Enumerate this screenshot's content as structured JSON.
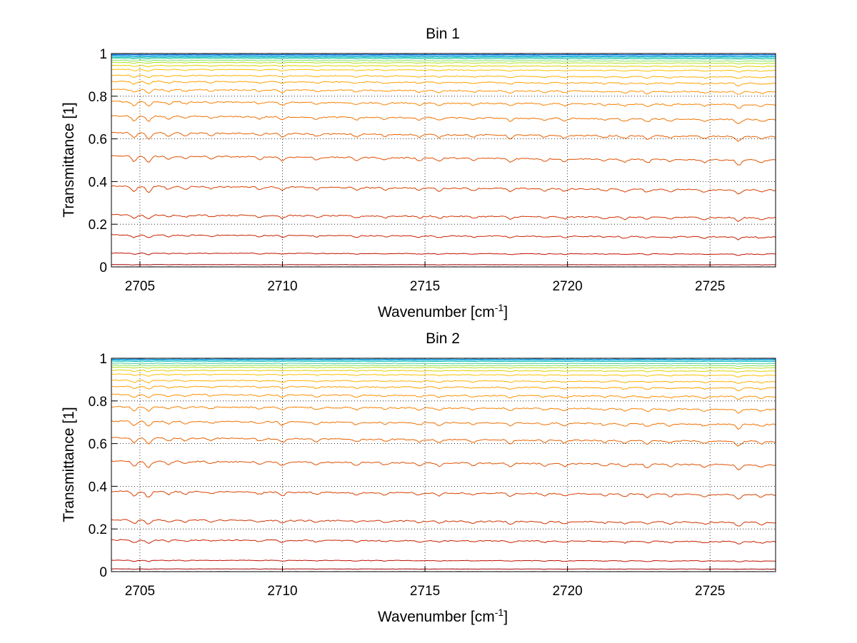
{
  "chart_data": [
    {
      "type": "line",
      "title": "Bin 1",
      "xlabel": "Wavenumber [cm",
      "xlabel_sup": "-1",
      "xlabel_end": "]",
      "ylabel": "Transmittance [1]",
      "xlim": [
        2704,
        2727.3
      ],
      "ylim": [
        0,
        1
      ],
      "xticks": [
        "2705",
        "2710",
        "2715",
        "2720",
        "2725"
      ],
      "yticks": [
        "0",
        "0.2",
        "0.4",
        "0.6",
        "0.8",
        "1"
      ],
      "grid": true,
      "series_levels": [
        0.0,
        0.01,
        0.06,
        0.14,
        0.23,
        0.36,
        0.5,
        0.61,
        0.69,
        0.76,
        0.82,
        0.86,
        0.89,
        0.92,
        0.94,
        0.955,
        0.965,
        0.975,
        0.98,
        0.985,
        0.99,
        0.995,
        1.0
      ],
      "colors": [
        "#800000",
        "#a00000",
        "#c01000",
        "#c82000",
        "#d03000",
        "#d84000",
        "#e05000",
        "#e86000",
        "#f07000",
        "#f88000",
        "#ff9000",
        "#ffa000",
        "#ffb000",
        "#ffc000",
        "#e0d000",
        "#b0e020",
        "#80e060",
        "#40d0a0",
        "#20c0c0",
        "#00b0d0",
        "#0090e0",
        "#0060d0",
        "#0030b0"
      ]
    },
    {
      "type": "line",
      "title": "Bin 2",
      "xlabel": "Wavenumber [cm",
      "xlabel_sup": "-1",
      "xlabel_end": "]",
      "ylabel": "Transmittance [1]",
      "xlim": [
        2704,
        2727.3
      ],
      "ylim": [
        0,
        1
      ],
      "xticks": [
        "2705",
        "2710",
        "2715",
        "2720",
        "2725"
      ],
      "yticks": [
        "0",
        "0.2",
        "0.4",
        "0.6",
        "0.8",
        "1"
      ],
      "grid": true,
      "series_levels": [
        0.0,
        0.012,
        0.05,
        0.14,
        0.23,
        0.36,
        0.5,
        0.61,
        0.69,
        0.76,
        0.82,
        0.86,
        0.89,
        0.92,
        0.94,
        0.955,
        0.965,
        0.975,
        0.985,
        0.99,
        0.995,
        1.0,
        1.0
      ],
      "colors": [
        "#800000",
        "#a00000",
        "#c01000",
        "#c82000",
        "#d03000",
        "#d84000",
        "#e05000",
        "#e86000",
        "#f07000",
        "#f88000",
        "#ff9000",
        "#ffa000",
        "#ffb000",
        "#ffc000",
        "#e0d000",
        "#b0e020",
        "#80e060",
        "#40d0a0",
        "#20c0c0",
        "#00b0d0",
        "#0090e0",
        "#0060d0",
        "#000080"
      ]
    }
  ]
}
